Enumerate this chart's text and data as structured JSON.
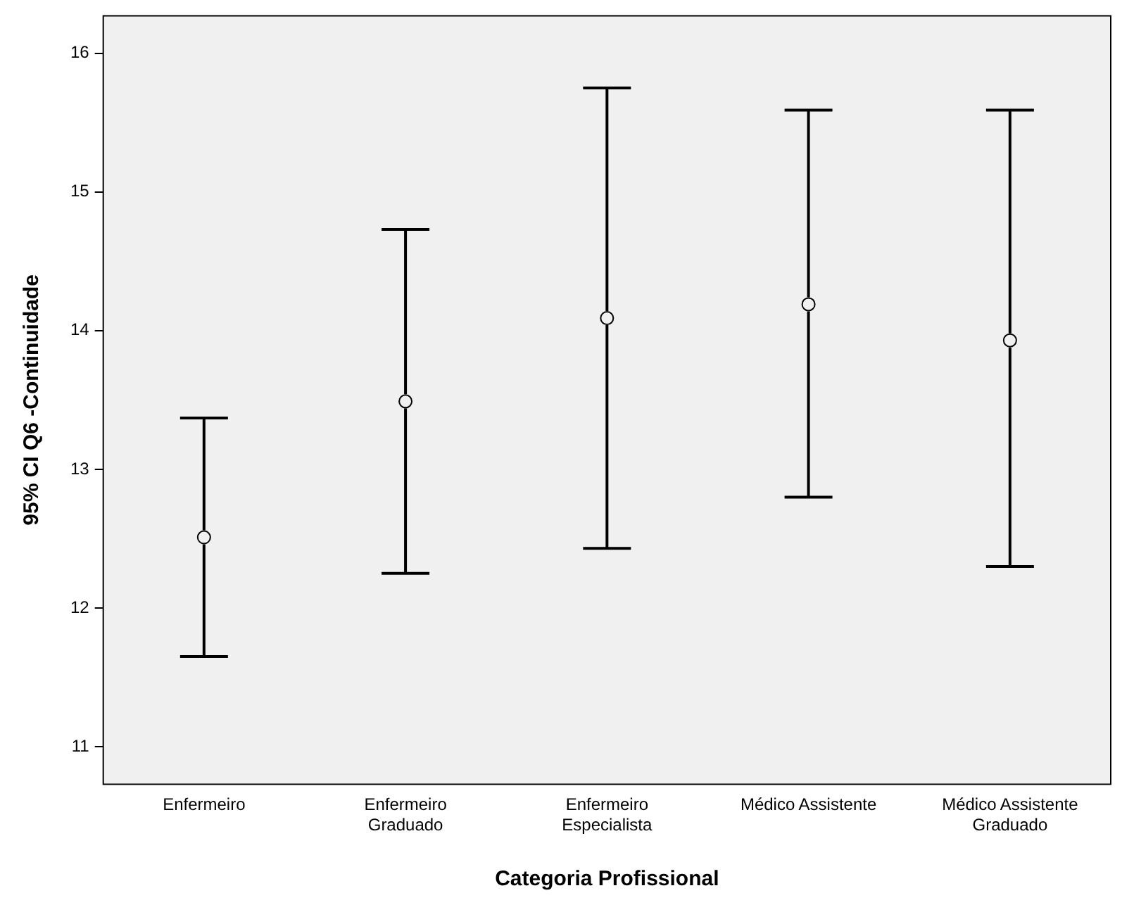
{
  "chart_data": {
    "type": "scatter",
    "xlabel": "Categoria Profissional",
    "ylabel": "95% CI Q6 -Continuidade",
    "categories": [
      "Enfermeiro",
      "Enfermeiro\nGraduado",
      "Enfermeiro\nEspecialista",
      "Médico Assistente",
      "Médico Assistente\nGraduado"
    ],
    "values": [
      12.51,
      13.49,
      14.09,
      14.19,
      13.93
    ],
    "errors": [
      [
        11.65,
        13.37
      ],
      [
        12.25,
        14.73
      ],
      [
        12.43,
        15.75
      ],
      [
        12.8,
        15.59
      ],
      [
        12.3,
        15.59
      ]
    ],
    "color": "#000000",
    "marker": "circle",
    "ylim": [
      10.73,
      16.27
    ],
    "yticks": [
      11,
      12,
      13,
      14,
      15,
      16
    ],
    "grid": false,
    "legend": false
  }
}
